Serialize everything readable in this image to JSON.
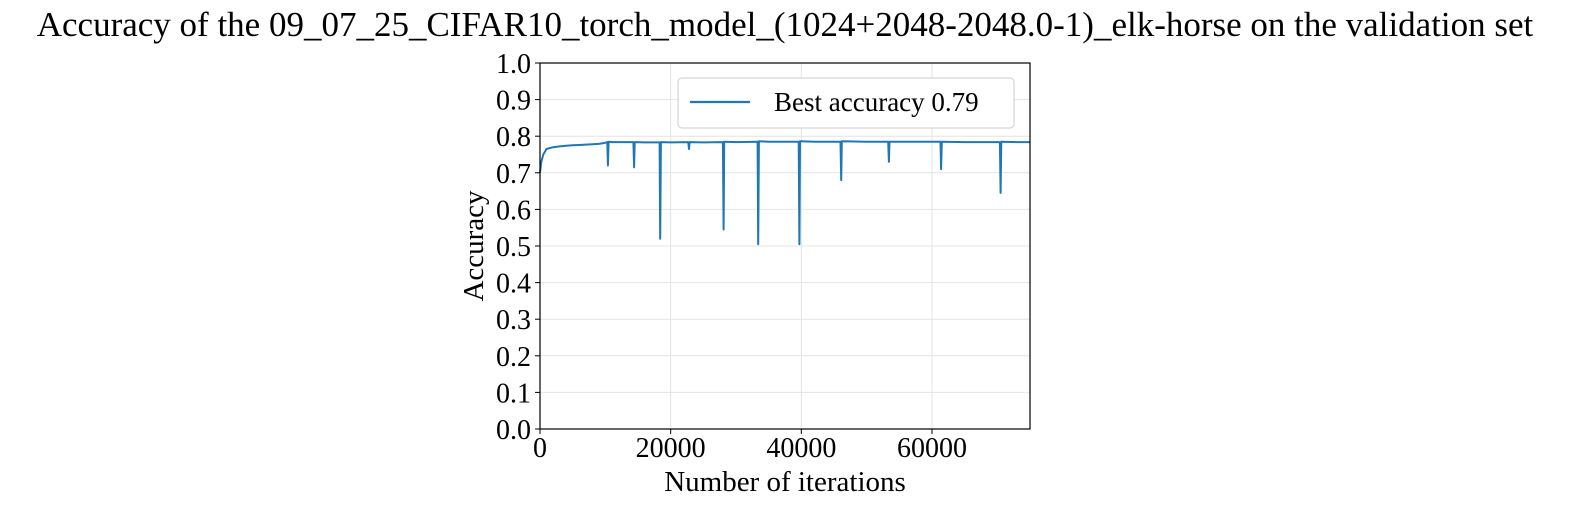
{
  "chart_data": {
    "type": "line",
    "title": "Accuracy of the 09_07_25_CIFAR10_torch_model_(1024+2048-2048.0-1)_elk-horse on the validation set",
    "xlabel": "Number of iterations",
    "ylabel": "Accuracy",
    "xlim": [
      0,
      75000
    ],
    "ylim": [
      0.0,
      1.0
    ],
    "xticks": [
      0,
      20000,
      40000,
      60000
    ],
    "xtick_labels": [
      "0",
      "20000",
      "40000",
      "60000"
    ],
    "yticks": [
      0.0,
      0.1,
      0.2,
      0.3,
      0.4,
      0.5,
      0.6,
      0.7,
      0.8,
      0.9,
      1.0
    ],
    "ytick_labels": [
      "0.0",
      "0.1",
      "0.2",
      "0.3",
      "0.4",
      "0.5",
      "0.6",
      "0.7",
      "0.8",
      "0.9",
      "1.0"
    ],
    "grid": true,
    "legend_position": "top-right",
    "series": [
      {
        "name": "Best accuracy 0.79",
        "color": "#1f77b4",
        "x": [
          0,
          200,
          500,
          1000,
          2000,
          3000,
          4000,
          5000,
          6000,
          7000,
          8000,
          9000,
          10000,
          10300,
          10400,
          10500,
          11000,
          14300,
          14400,
          14500,
          16000,
          18300,
          18400,
          18500,
          20000,
          22700,
          22800,
          22900,
          25000,
          28000,
          28100,
          28200,
          30000,
          33300,
          33400,
          33500,
          35000,
          39600,
          39700,
          39800,
          42000,
          46000,
          46100,
          46200,
          50000,
          53300,
          53400,
          53500,
          58000,
          61300,
          61400,
          61500,
          65000,
          70400,
          70500,
          70600,
          73000,
          75000
        ],
        "y": [
          0.7,
          0.73,
          0.75,
          0.765,
          0.77,
          0.772,
          0.774,
          0.775,
          0.776,
          0.777,
          0.778,
          0.779,
          0.782,
          0.784,
          0.72,
          0.785,
          0.784,
          0.784,
          0.715,
          0.784,
          0.783,
          0.783,
          0.52,
          0.784,
          0.783,
          0.784,
          0.765,
          0.784,
          0.783,
          0.784,
          0.545,
          0.785,
          0.784,
          0.785,
          0.505,
          0.786,
          0.785,
          0.785,
          0.505,
          0.786,
          0.785,
          0.785,
          0.68,
          0.786,
          0.785,
          0.785,
          0.73,
          0.785,
          0.785,
          0.785,
          0.71,
          0.785,
          0.784,
          0.784,
          0.645,
          0.785,
          0.784,
          0.784
        ]
      }
    ]
  }
}
